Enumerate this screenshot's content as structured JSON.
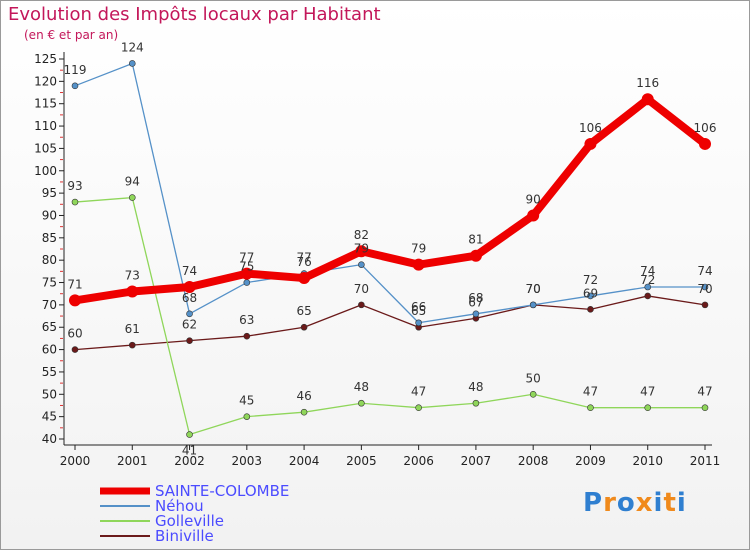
{
  "chart_data": {
    "type": "line",
    "title": "Evolution des Impôts locaux par Habitant",
    "subtitle": "(en € et par an)",
    "x": [
      "2000",
      "2001",
      "2002",
      "2003",
      "2004",
      "2005",
      "2006",
      "2007",
      "2008",
      "2009",
      "2010",
      "2011"
    ],
    "ylim": [
      40,
      125
    ],
    "yticks": [
      40,
      45,
      50,
      55,
      60,
      65,
      70,
      75,
      80,
      85,
      90,
      95,
      100,
      105,
      110,
      115,
      120,
      125
    ],
    "series": [
      {
        "name": "Biniville",
        "color": "#6b1a1a",
        "values": [
          60,
          61,
          62,
          63,
          65,
          70,
          65,
          67,
          70,
          69,
          72,
          70
        ]
      },
      {
        "name": "Golleville",
        "color": "#8fd65a",
        "values": [
          93,
          94,
          41,
          45,
          46,
          48,
          47,
          48,
          50,
          47,
          47,
          47
        ]
      },
      {
        "name": "Néhou",
        "color": "#5591c8",
        "values": [
          119,
          124,
          68,
          75,
          77,
          79,
          66,
          68,
          70,
          72,
          74,
          74
        ]
      },
      {
        "name": "SAINTE-COLOMBE",
        "color": "#ee0000",
        "values": [
          71,
          73,
          74,
          77,
          76,
          82,
          79,
          81,
          90,
          106,
          116,
          106
        ]
      }
    ]
  },
  "legend": [
    "SAINTE-COLOMBE",
    "Néhou",
    "Golleville",
    "Biniville"
  ],
  "logo": {
    "letters": [
      "P",
      "r",
      "o",
      "x",
      "i",
      "t",
      "i"
    ],
    "colors": [
      "#2f7fd0",
      "#f08a1c",
      "#2f7fd0",
      "#f08a1c",
      "#2f7fd0",
      "#f08a1c",
      "#2f7fd0"
    ]
  }
}
